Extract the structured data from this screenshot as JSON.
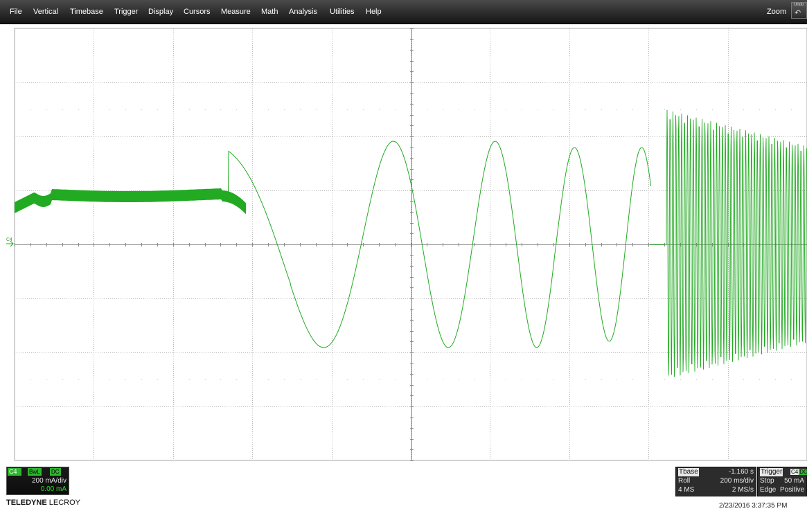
{
  "menu": [
    "File",
    "Vertical",
    "Timebase",
    "Trigger",
    "Display",
    "Cursors",
    "Measure",
    "Math",
    "Analysis",
    "Utilities",
    "Help"
  ],
  "zoom_label": "Zoom",
  "undo_label": "Undo",
  "channel": {
    "name": "C4",
    "tag": "C4",
    "bwl": "BwL",
    "coupling": "DC",
    "scale": "200 mA/div",
    "offset": "0.00 mA",
    "color": "#22aa22"
  },
  "brand": {
    "part1": "TELEDYNE",
    "part2": " LECROY"
  },
  "timebase": {
    "label": "Tbase",
    "delay": "-1.160 s",
    "mode": "Roll",
    "scale": "200 ms/div",
    "samples": "4 MS",
    "rate": "2 MS/s"
  },
  "trigger": {
    "label": "Trigger",
    "source": "C4",
    "coupling": "DC",
    "state": "Stop",
    "level": "50 mA",
    "type": "Edge",
    "slope": "Positive"
  },
  "timestamp": "2/23/2016 3:37:35 PM",
  "grid": {
    "h_divisions": 10,
    "v_divisions": 8
  },
  "icons": {
    "undo": "undo-icon",
    "ground_marker": "channel-ground-arrow-icon"
  }
}
